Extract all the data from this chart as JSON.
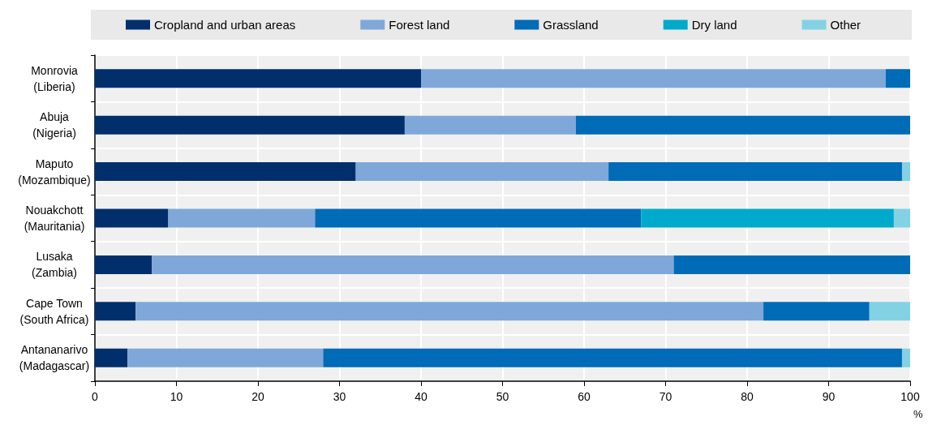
{
  "chart_data": {
    "type": "bar",
    "orientation": "horizontal",
    "stacked": true,
    "xlabel": "%",
    "categories": [
      "Monrovia\n(Liberia)",
      "Abuja\n(Nigeria)",
      "Maputo\n(Mozambique)",
      "Nouakchott\n(Mauritania)",
      "Lusaka\n(Zambia)",
      "Cape Town\n(South Africa)",
      "Antananarivo\n(Madagascar)"
    ],
    "series": [
      {
        "name": "Cropland and urban areas",
        "color": "#002f6c",
        "values": [
          40,
          38,
          32,
          9,
          7,
          5,
          4
        ]
      },
      {
        "name": "Forest land",
        "color": "#7fa8d9",
        "values": [
          57,
          21,
          31,
          18,
          64,
          77,
          24
        ]
      },
      {
        "name": "Grassland",
        "color": "#006bb6",
        "values": [
          3,
          41,
          36,
          40,
          29,
          13,
          71
        ]
      },
      {
        "name": "Dry land",
        "color": "#00aacc",
        "values": [
          0,
          0,
          0,
          31,
          0,
          0,
          0
        ]
      },
      {
        "name": "Other",
        "color": "#83d2e3",
        "values": [
          0,
          0,
          1,
          2,
          0,
          5,
          1
        ]
      }
    ],
    "xlim": [
      0,
      100
    ],
    "xticks": [
      0,
      10,
      20,
      30,
      40,
      50,
      60,
      70,
      80,
      90,
      100
    ],
    "grid": true,
    "legend": "top"
  }
}
